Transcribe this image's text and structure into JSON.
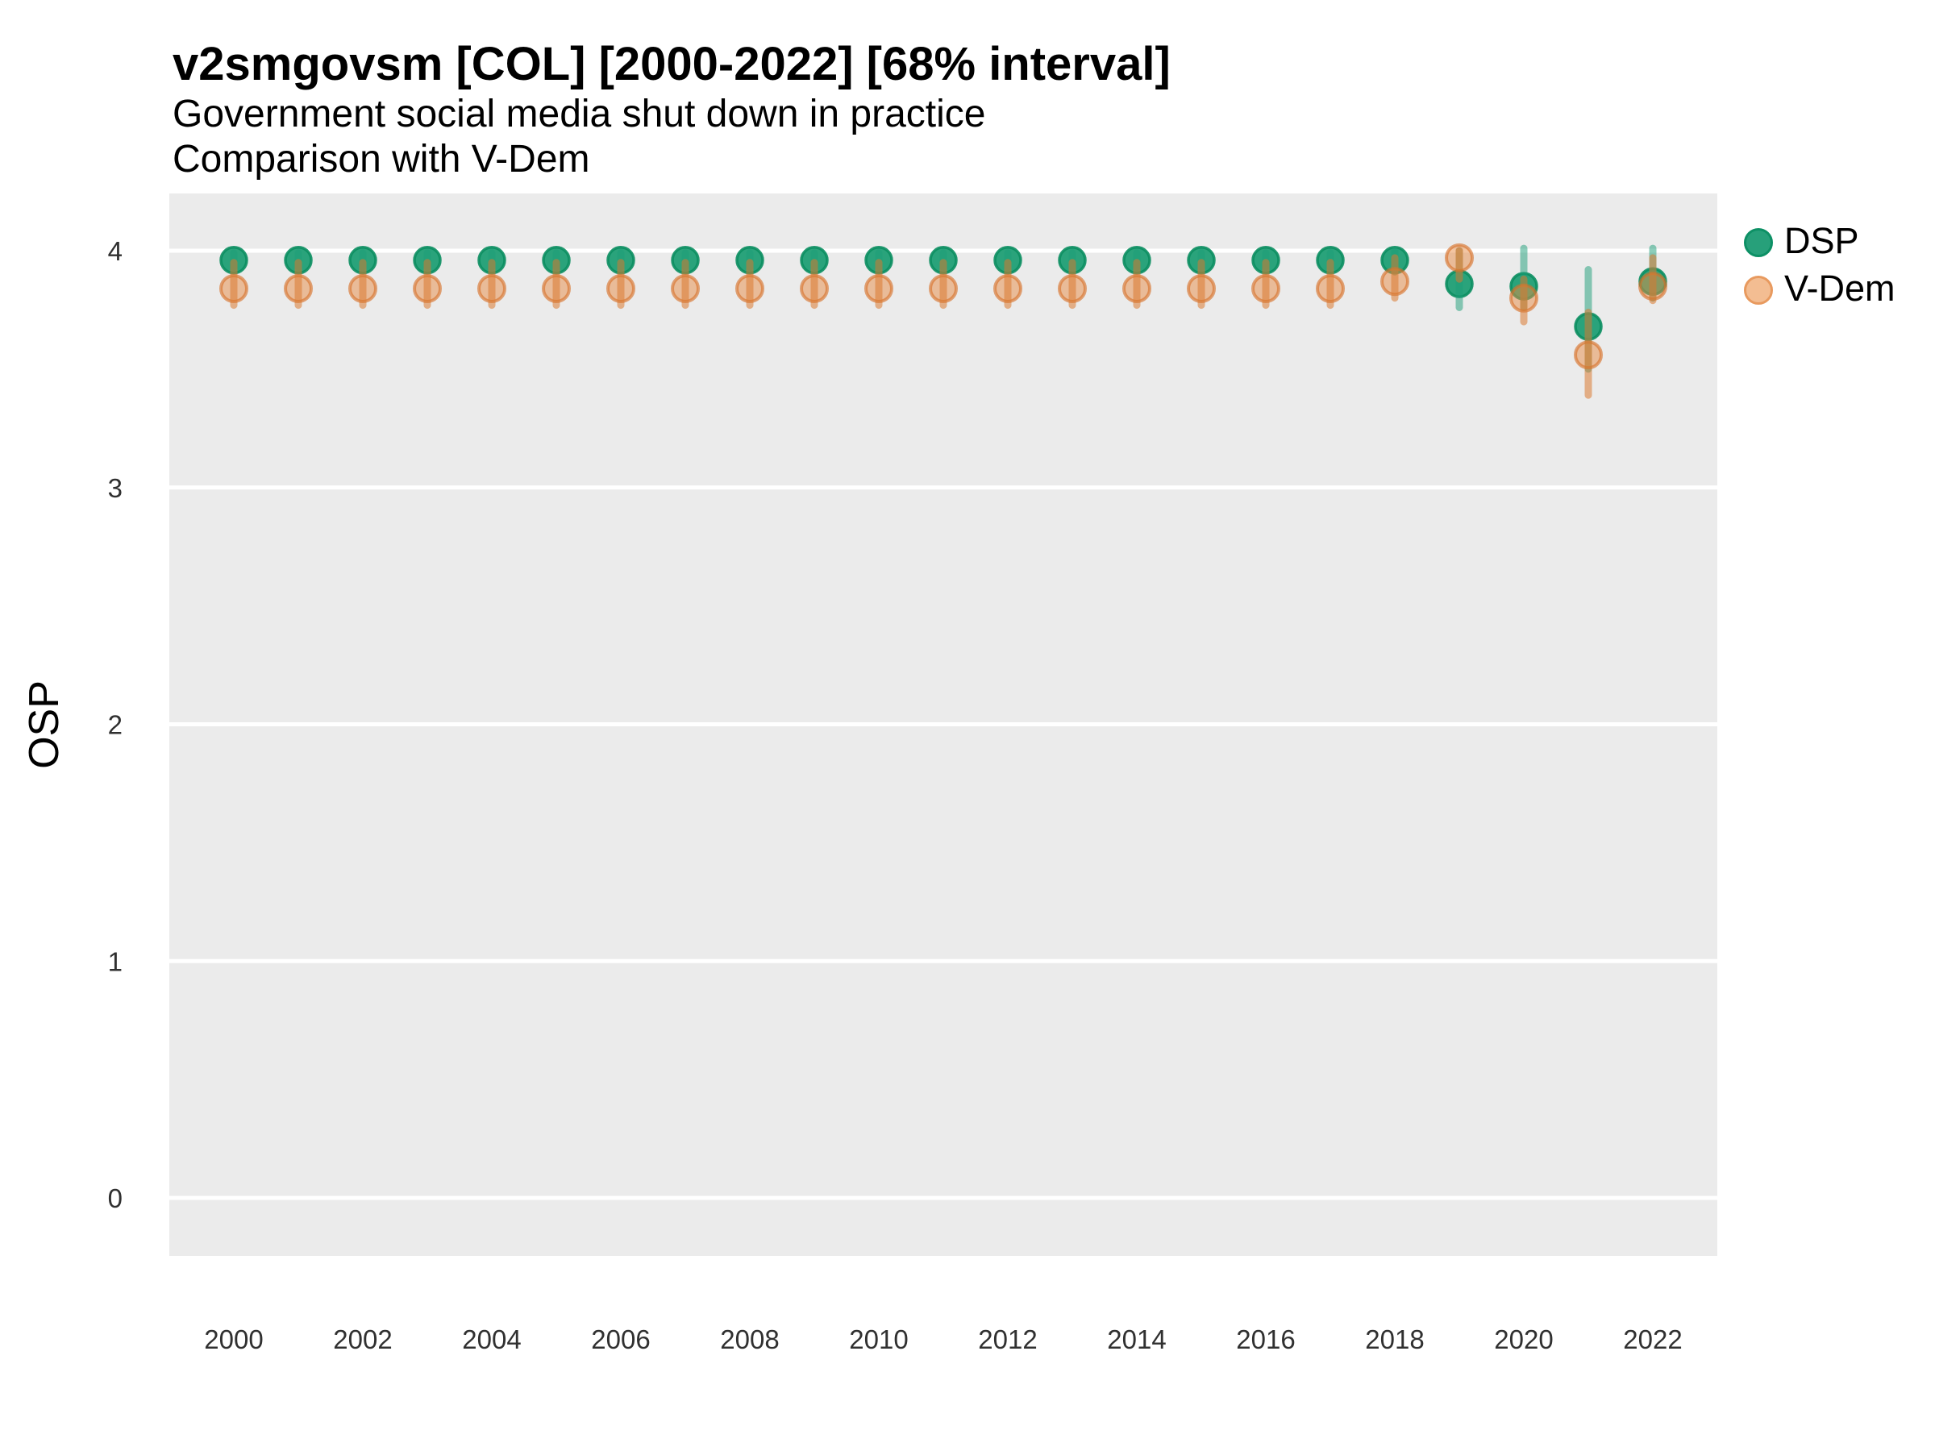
{
  "header": {
    "title": "v2smgovsm [COL] [2000-2022] [68% interval]",
    "subtitle1": "Government social media shut down in practice",
    "subtitle2": "Comparison with V-Dem"
  },
  "axes": {
    "y_title": "OSP",
    "y_ticks": [
      0,
      1,
      2,
      3,
      4
    ],
    "x_ticks": [
      2000,
      2002,
      2004,
      2006,
      2008,
      2010,
      2012,
      2014,
      2016,
      2018,
      2020,
      2022
    ]
  },
  "legend": {
    "position": "right",
    "items": [
      {
        "label": "DSP",
        "color": "#1B9E77"
      },
      {
        "label": "V-Dem",
        "color": "#D95F02"
      }
    ]
  },
  "colors": {
    "background": "#FFFFFF",
    "panel_background": "#EBEBEB",
    "gridline": "#FFFFFF",
    "title_text": "#000000",
    "tick_text": "#303030",
    "dsp_base": "#1B9E77",
    "dsp_dot_fill": "rgba(33,159,118,0.96)",
    "dsp_dot_stroke": "rgba(11,142,96,0.9)",
    "dsp_range": "rgba(27,158,119,0.5)",
    "vdem_base": "#D95F02",
    "vdem_dot_fill": "rgba(231,140,69,0.5)",
    "vdem_dot_stroke": "rgba(214,112,39,0.62)",
    "vdem_range": "rgba(219,122,49,0.55)"
  },
  "chart_data": {
    "type": "pointrange",
    "title": "v2smgovsm [COL] [2000-2022] [68% interval]",
    "subtitle": "Government social media shut down in practice — Comparison with V-Dem",
    "xlabel": "",
    "ylabel": "OSP",
    "ylim": [
      -0.25,
      4.25
    ],
    "xlim": [
      1999,
      2023
    ],
    "grid": "horizontal-major-only",
    "interval": "68%",
    "x": [
      2000,
      2001,
      2002,
      2003,
      2004,
      2005,
      2006,
      2007,
      2008,
      2009,
      2010,
      2011,
      2012,
      2013,
      2014,
      2015,
      2016,
      2017,
      2018,
      2019,
      2020,
      2021,
      2022
    ],
    "series": [
      {
        "name": "DSP",
        "style": "dsp",
        "values": [
          3.96,
          3.96,
          3.96,
          3.96,
          3.96,
          3.96,
          3.96,
          3.96,
          3.96,
          3.96,
          3.96,
          3.96,
          3.96,
          3.96,
          3.96,
          3.96,
          3.96,
          3.96,
          3.96,
          3.86,
          3.85,
          3.68,
          3.87
        ],
        "lower": [
          3.93,
          3.93,
          3.93,
          3.93,
          3.93,
          3.93,
          3.93,
          3.93,
          3.93,
          3.93,
          3.93,
          3.93,
          3.93,
          3.93,
          3.93,
          3.93,
          3.93,
          3.93,
          3.91,
          3.76,
          3.76,
          3.5,
          3.8
        ],
        "upper": [
          3.99,
          3.99,
          3.99,
          3.99,
          3.99,
          3.99,
          3.99,
          3.99,
          3.99,
          3.99,
          3.99,
          3.99,
          3.99,
          3.99,
          3.99,
          3.99,
          3.99,
          3.99,
          4.0,
          4.0,
          4.01,
          3.92,
          4.01
        ]
      },
      {
        "name": "V-Dem",
        "style": "vdem",
        "values": [
          3.84,
          3.84,
          3.84,
          3.84,
          3.84,
          3.84,
          3.84,
          3.84,
          3.84,
          3.84,
          3.84,
          3.84,
          3.84,
          3.84,
          3.84,
          3.84,
          3.84,
          3.84,
          3.87,
          3.97,
          3.8,
          3.56,
          3.85
        ],
        "lower": [
          3.77,
          3.77,
          3.77,
          3.77,
          3.77,
          3.77,
          3.77,
          3.77,
          3.77,
          3.77,
          3.77,
          3.77,
          3.77,
          3.77,
          3.77,
          3.77,
          3.77,
          3.77,
          3.8,
          3.88,
          3.7,
          3.39,
          3.79
        ],
        "upper": [
          3.95,
          3.95,
          3.95,
          3.95,
          3.95,
          3.95,
          3.95,
          3.95,
          3.95,
          3.95,
          3.95,
          3.95,
          3.95,
          3.95,
          3.95,
          3.95,
          3.95,
          3.95,
          3.97,
          4.0,
          3.88,
          3.74,
          3.97
        ]
      }
    ]
  }
}
